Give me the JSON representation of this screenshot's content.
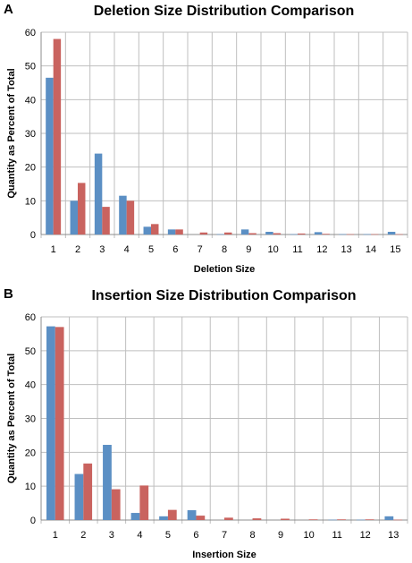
{
  "colors": {
    "series_a": "#5b8fc4",
    "series_b": "#c9635f",
    "grid": "#bfbfbf",
    "axis": "#8c8c8c"
  },
  "panels": [
    {
      "letter": "A",
      "title": "Deletion Size Distribution Comparison"
    },
    {
      "letter": "B",
      "title": "Insertion Size Distribution Comparison"
    }
  ],
  "chart_data": [
    {
      "type": "bar",
      "title": "Deletion Size Distribution Comparison",
      "xlabel": "Deletion Size",
      "ylabel": "Quantity as Percent of Total",
      "ylim": [
        0,
        60
      ],
      "yticks": [
        0,
        10,
        20,
        30,
        40,
        50,
        60
      ],
      "grid": true,
      "legend": "none",
      "categories": [
        "1",
        "2",
        "3",
        "4",
        "5",
        "6",
        "7",
        "8",
        "9",
        "10",
        "11",
        "12",
        "13",
        "14",
        "15"
      ],
      "series": [
        {
          "color": "#5b8fc4",
          "values": [
            46.5,
            10,
            24,
            11.5,
            2.3,
            1.5,
            0,
            0.1,
            1.5,
            0.8,
            0.1,
            0.7,
            0.1,
            0.1,
            0.8
          ]
        },
        {
          "color": "#c9635f",
          "values": [
            58,
            15.3,
            8.2,
            10,
            3.1,
            1.5,
            0.6,
            0.6,
            0.4,
            0.4,
            0.3,
            0.2,
            0.1,
            0.1,
            0.1
          ]
        }
      ]
    },
    {
      "type": "bar",
      "title": "Insertion Size Distribution Comparison",
      "xlabel": "Insertion Size",
      "ylabel": "Quantity as Percent of Total",
      "ylim": [
        0,
        60
      ],
      "yticks": [
        0,
        10,
        20,
        30,
        40,
        50,
        60
      ],
      "grid": true,
      "legend": "none",
      "categories": [
        "1",
        "2",
        "3",
        "4",
        "5",
        "6",
        "7",
        "8",
        "9",
        "10",
        "11",
        "12",
        "13"
      ],
      "series": [
        {
          "color": "#5b8fc4",
          "values": [
            57.2,
            13.6,
            22.2,
            2.1,
            1.1,
            2.9,
            0,
            0,
            0,
            0,
            0.1,
            0.1,
            1.1
          ]
        },
        {
          "color": "#c9635f",
          "values": [
            57,
            16.7,
            9.1,
            10.2,
            3,
            1.3,
            0.7,
            0.5,
            0.4,
            0.2,
            0.2,
            0.2,
            0.1
          ]
        }
      ]
    }
  ]
}
